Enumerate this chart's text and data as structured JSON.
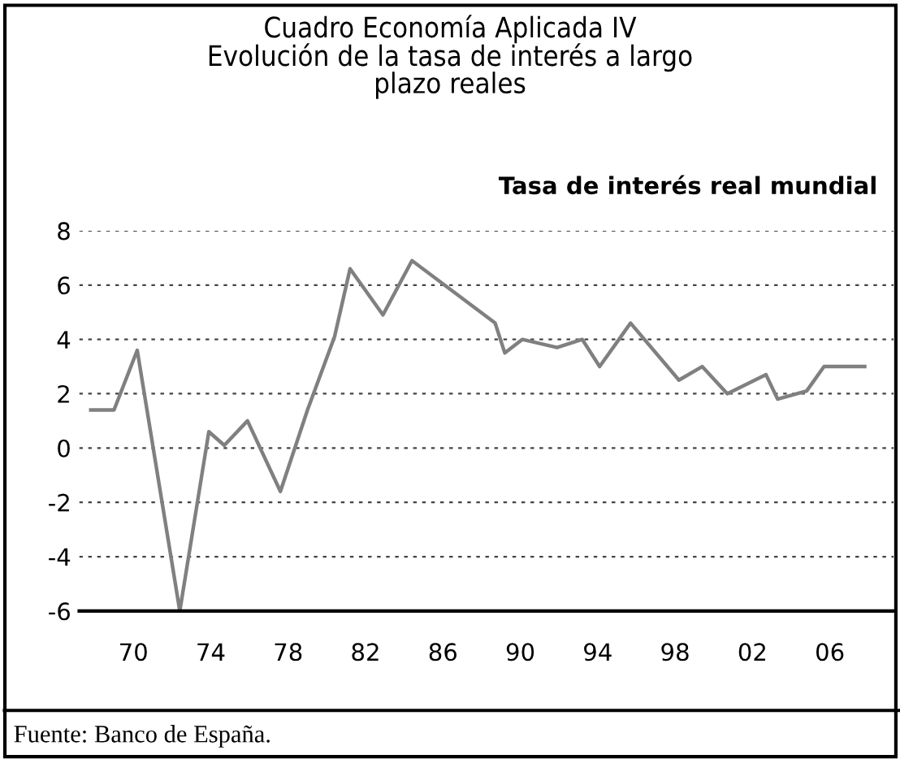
{
  "chart_data": {
    "type": "line",
    "title": "Cuadro Economía Aplicada IV\nEvolución de la tasa de interés a largo\nplazo reales",
    "subtitle": "Tasa de interés real mundial",
    "annotations": [
      "Fuente: Banco de España."
    ],
    "x": [
      1967.8,
      1969,
      1970.2,
      1972.4,
      1973.9,
      1974.7,
      1975.9,
      1977.6,
      1979,
      1980.4,
      1981.2,
      1982.9,
      1984.4,
      1988.7,
      1989.2,
      1990.1,
      1991.9,
      1993.2,
      1994.1,
      1995.7,
      1998.2,
      1999.4,
      2000.7,
      2002.7,
      2003.3,
      2004.8,
      2005.7,
      2007.8
    ],
    "series": [
      {
        "color": "#808080",
        "values": [
          1.4,
          1.4,
          3.6,
          -6.0,
          0.6,
          0.1,
          1.0,
          -1.6,
          1.4,
          4.1,
          6.6,
          4.9,
          6.9,
          4.6,
          3.5,
          4.0,
          3.7,
          4.0,
          3.0,
          4.6,
          2.5,
          3.0,
          2.0,
          2.7,
          1.8,
          2.1,
          3.0,
          3.0
        ]
      }
    ],
    "xlim": [
      1967.2,
      2009.3
    ],
    "xticks": [
      {
        "value": 1970,
        "label": "70"
      },
      {
        "value": 1974,
        "label": "74"
      },
      {
        "value": 1978,
        "label": "78"
      },
      {
        "value": 1982,
        "label": "82"
      },
      {
        "value": 1986,
        "label": "86"
      },
      {
        "value": 1990,
        "label": "90"
      },
      {
        "value": 1994,
        "label": "94"
      },
      {
        "value": 1998,
        "label": "98"
      },
      {
        "value": 2002,
        "label": "02"
      },
      {
        "value": 2006,
        "label": "06"
      }
    ],
    "ylim": [
      -6,
      8
    ],
    "yticks": [
      -6,
      -4,
      -2,
      0,
      2,
      4,
      6,
      8
    ],
    "grid": "y",
    "legend": false,
    "marker": "none",
    "line_style": "solid"
  }
}
